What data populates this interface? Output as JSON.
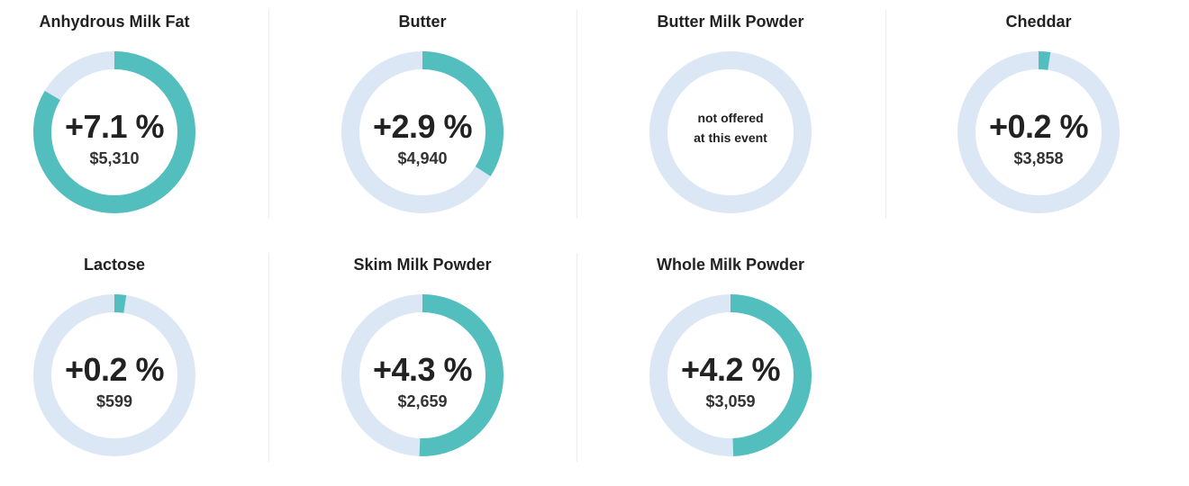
{
  "chart_data": {
    "type": "donut",
    "colors": {
      "track": "#dce7f5",
      "fill": "#52bebe"
    },
    "items": [
      {
        "name": "Anhydrous Milk Fat",
        "change": 7.1,
        "change_label": "+7.1 %",
        "price_label": "$5,310",
        "note": ""
      },
      {
        "name": "Butter",
        "change": 2.9,
        "change_label": "+2.9 %",
        "price_label": "$4,940",
        "note": ""
      },
      {
        "name": "Butter Milk Powder",
        "change": null,
        "change_label": "",
        "price_label": "",
        "note_line1": "not offered",
        "note_line2": "at this event"
      },
      {
        "name": "Cheddar",
        "change": 0.2,
        "change_label": "+0.2 %",
        "price_label": "$3,858",
        "note": ""
      },
      {
        "name": "Lactose",
        "change": 0.2,
        "change_label": "+0.2 %",
        "price_label": "$599",
        "note": ""
      },
      {
        "name": "Skim Milk Powder",
        "change": 4.3,
        "change_label": "+4.3 %",
        "price_label": "$2,659",
        "note": ""
      },
      {
        "name": "Whole Milk Powder",
        "change": 4.2,
        "change_label": "+4.2 %",
        "price_label": "$3,059",
        "note": ""
      }
    ]
  }
}
